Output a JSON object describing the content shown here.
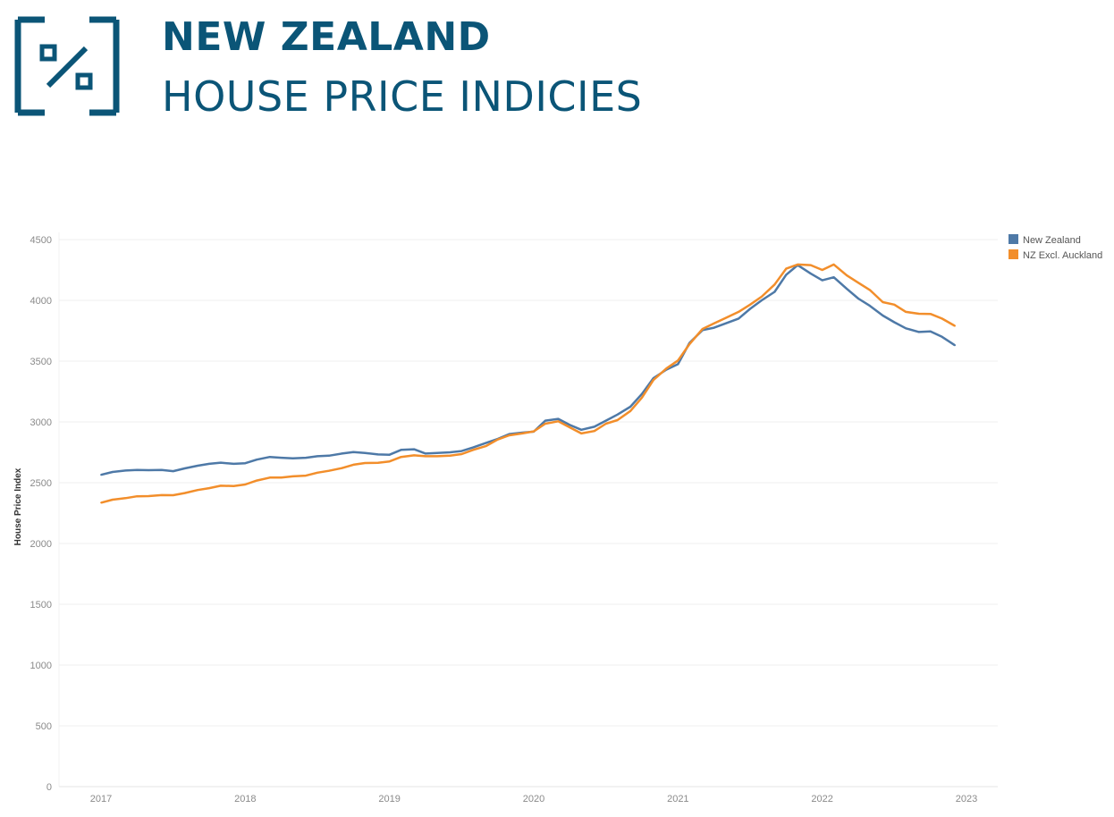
{
  "header": {
    "title": "NEW ZEALAND",
    "subtitle": "HOUSE PRICE INDICIES",
    "brand_color": "#0b5577",
    "logo_icon": "percent-bracket-icon"
  },
  "chart_data": {
    "type": "line",
    "ylabel": "House Price Index",
    "xlabel": "",
    "ylim": [
      0,
      4500
    ],
    "yticks": [
      0,
      500,
      1000,
      1500,
      2000,
      2500,
      3000,
      3500,
      4000,
      4500
    ],
    "xlim": [
      2017,
      2023.2
    ],
    "xticks": [
      2017,
      2018,
      2019,
      2020,
      2021,
      2022,
      2023
    ],
    "grid": "horizontal",
    "legend_position": "top-right",
    "series": [
      {
        "name": "New Zealand",
        "color": "#4e79a7",
        "x": [
          2017.0,
          2017.08,
          2017.17,
          2017.25,
          2017.33,
          2017.42,
          2017.5,
          2017.58,
          2017.67,
          2017.75,
          2017.83,
          2017.92,
          2018.0,
          2018.08,
          2018.17,
          2018.25,
          2018.33,
          2018.42,
          2018.5,
          2018.58,
          2018.67,
          2018.75,
          2018.83,
          2018.92,
          2019.0,
          2019.08,
          2019.17,
          2019.25,
          2019.33,
          2019.42,
          2019.5,
          2019.58,
          2019.67,
          2019.75,
          2019.83,
          2019.92,
          2020.0,
          2020.08,
          2020.17,
          2020.25,
          2020.33,
          2020.42,
          2020.5,
          2020.58,
          2020.67,
          2020.75,
          2020.83,
          2020.92,
          2021.0,
          2021.08,
          2021.17,
          2021.25,
          2021.33,
          2021.42,
          2021.5,
          2021.58,
          2021.67,
          2021.75,
          2021.83,
          2021.92,
          2022.0,
          2022.08,
          2022.17,
          2022.25,
          2022.33,
          2022.42,
          2022.5,
          2022.58,
          2022.67,
          2022.75,
          2022.83,
          2022.92
        ],
        "values": [
          2565,
          2588,
          2600,
          2605,
          2603,
          2605,
          2595,
          2618,
          2640,
          2655,
          2665,
          2655,
          2660,
          2690,
          2712,
          2705,
          2700,
          2705,
          2718,
          2722,
          2740,
          2752,
          2745,
          2732,
          2730,
          2770,
          2775,
          2740,
          2745,
          2750,
          2760,
          2790,
          2828,
          2860,
          2900,
          2912,
          2920,
          3010,
          3025,
          2975,
          2935,
          2960,
          3010,
          3060,
          3125,
          3230,
          3360,
          3430,
          3475,
          3650,
          3755,
          3775,
          3810,
          3850,
          3930,
          4000,
          4070,
          4210,
          4290,
          4220,
          4165,
          4190,
          4095,
          4015,
          3955,
          3875,
          3820,
          3770,
          3740,
          3745,
          3700,
          3630
        ]
      },
      {
        "name": "NZ Excl. Auckland",
        "color": "#f28e2b",
        "x": [
          2017.0,
          2017.08,
          2017.17,
          2017.25,
          2017.33,
          2017.42,
          2017.5,
          2017.58,
          2017.67,
          2017.75,
          2017.83,
          2017.92,
          2018.0,
          2018.08,
          2018.17,
          2018.25,
          2018.33,
          2018.42,
          2018.5,
          2018.58,
          2018.67,
          2018.75,
          2018.83,
          2018.92,
          2019.0,
          2019.08,
          2019.17,
          2019.25,
          2019.33,
          2019.42,
          2019.5,
          2019.58,
          2019.67,
          2019.75,
          2019.83,
          2019.92,
          2020.0,
          2020.08,
          2020.17,
          2020.25,
          2020.33,
          2020.42,
          2020.5,
          2020.58,
          2020.67,
          2020.75,
          2020.83,
          2020.92,
          2021.0,
          2021.08,
          2021.17,
          2021.25,
          2021.33,
          2021.42,
          2021.5,
          2021.58,
          2021.67,
          2021.75,
          2021.83,
          2021.92,
          2022.0,
          2022.08,
          2022.17,
          2022.25,
          2022.33,
          2022.42,
          2022.5,
          2022.58,
          2022.67,
          2022.75,
          2022.83,
          2022.92
        ],
        "values": [
          2335,
          2360,
          2373,
          2388,
          2390,
          2398,
          2397,
          2415,
          2440,
          2455,
          2475,
          2473,
          2485,
          2518,
          2542,
          2542,
          2552,
          2558,
          2582,
          2598,
          2620,
          2648,
          2662,
          2663,
          2675,
          2712,
          2725,
          2718,
          2718,
          2722,
          2735,
          2770,
          2802,
          2855,
          2890,
          2905,
          2922,
          2985,
          3005,
          2955,
          2905,
          2925,
          2985,
          3015,
          3090,
          3200,
          3345,
          3440,
          3505,
          3640,
          3765,
          3810,
          3855,
          3905,
          3965,
          4030,
          4130,
          4260,
          4295,
          4290,
          4250,
          4295,
          4205,
          4145,
          4085,
          3985,
          3965,
          3905,
          3890,
          3888,
          3850,
          3790
        ]
      }
    ]
  }
}
